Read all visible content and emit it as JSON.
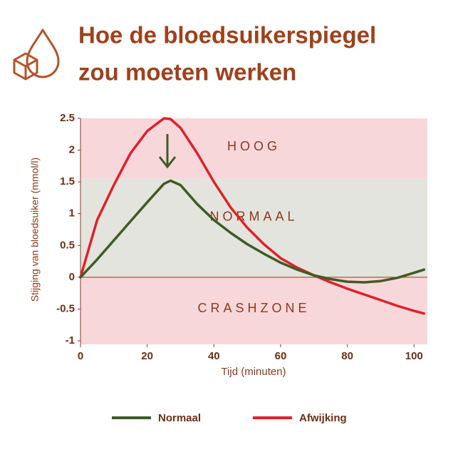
{
  "chart_data": {
    "type": "line",
    "title_lines": [
      "Hoe de bloedsuikerspiegel",
      "zou moeten werken"
    ],
    "xlabel": "Tijd (minuten)",
    "ylabel": "Stijging van bloedsuiker (mmol/l)",
    "xlim": [
      0,
      104
    ],
    "ylim": [
      -1,
      2.5
    ],
    "xticks": [
      0,
      20,
      40,
      60,
      80,
      100
    ],
    "yticks": [
      2.5,
      2,
      1.5,
      1,
      0.5,
      0,
      -0.5,
      -1
    ],
    "zones": [
      {
        "label": "HOOG",
        "from": 1.55,
        "to": 2.5,
        "color": "#f8d7da"
      },
      {
        "label": "NORMAAL",
        "from": 0,
        "to": 1.55,
        "color": "#e3e4dd"
      },
      {
        "label": "CRASHZONE",
        "from": -1,
        "to": 0,
        "color": "#f8d7da"
      }
    ],
    "x": [
      0,
      5,
      10,
      15,
      20,
      25,
      27,
      30,
      35,
      40,
      45,
      50,
      55,
      60,
      65,
      70,
      75,
      80,
      85,
      90,
      95,
      100,
      103
    ],
    "series": [
      {
        "name": "Normaal",
        "color": "#3f5b25",
        "values": [
          0,
          0.28,
          0.58,
          0.88,
          1.18,
          1.47,
          1.52,
          1.45,
          1.15,
          0.9,
          0.7,
          0.52,
          0.37,
          0.23,
          0.12,
          0.03,
          -0.03,
          -0.07,
          -0.08,
          -0.06,
          -0.01,
          0.07,
          0.12
        ]
      },
      {
        "name": "Afwijking",
        "color": "#e0202a",
        "values": [
          0,
          0.9,
          1.45,
          1.95,
          2.3,
          2.5,
          2.49,
          2.35,
          1.95,
          1.5,
          1.1,
          0.78,
          0.52,
          0.3,
          0.15,
          0.03,
          -0.08,
          -0.18,
          -0.27,
          -0.36,
          -0.45,
          -0.53,
          -0.57
        ]
      }
    ]
  }
}
